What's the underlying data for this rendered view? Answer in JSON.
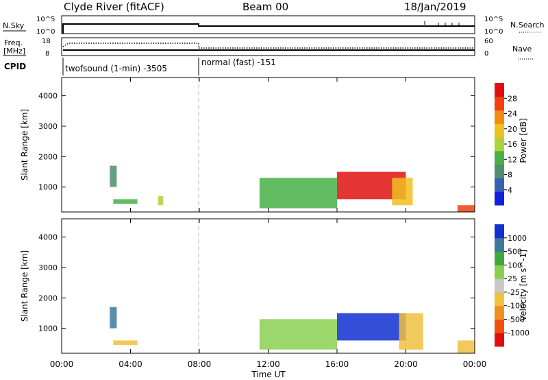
{
  "header": {
    "station": "Clyde River (fitACF)",
    "beam": "Beam 00",
    "date": "18/Jan/2019"
  },
  "nsky_panel": {
    "left_label": "N.Sky",
    "right_label": "N.Search",
    "left_ticks": [
      "10^5",
      "10^0"
    ],
    "right_ticks": [
      "10^5",
      "10^0"
    ]
  },
  "freq_panel": {
    "left_label_1": "Freq.",
    "left_label_2": "[MHz]",
    "right_label": "Nave",
    "left_ticks": [
      "18",
      "8"
    ],
    "right_ticks": [
      "60",
      "0"
    ]
  },
  "cpid_panel": {
    "label": "CPID",
    "mode1": "twofsound (1-min) -3505",
    "mode2": "normal (fast) -151"
  },
  "colors": {
    "power_scale": [
      "#1020e0",
      "#3a5fb8",
      "#4f8f6f",
      "#47b047",
      "#b0d040",
      "#f0c020",
      "#f08c10",
      "#f04010",
      "#e01010"
    ],
    "velocity_scale": [
      "#e01010",
      "#f05010",
      "#f09020",
      "#f0c040",
      "#c8c8c8",
      "#8ad050",
      "#40a840",
      "#3a7a9a",
      "#1030d0"
    ]
  },
  "chart_data": [
    {
      "type": "heatmap",
      "title": "",
      "ylabel": "Slant Range [km]",
      "xlabel": "",
      "xlim": [
        "00:00",
        "24:00"
      ],
      "ylim": [
        180,
        4600
      ],
      "yticks": [
        "1000",
        "2000",
        "3000",
        "4000"
      ],
      "xticks": [
        "00:00",
        "04:00",
        "08:00",
        "12:00",
        "16:00",
        "20:00",
        "00:00"
      ],
      "colorbar": {
        "label": "Power [dB]",
        "ticks": [
          "4",
          "8",
          "12",
          "16",
          "20",
          "24",
          "28"
        ],
        "range": [
          0,
          30
        ]
      },
      "regions": [
        {
          "t0": 2.8,
          "t1": 3.2,
          "r0": 1000,
          "r1": 1700,
          "z": 9
        },
        {
          "t0": 3.0,
          "t1": 4.4,
          "r0": 450,
          "r1": 600,
          "z": 12
        },
        {
          "t0": 5.6,
          "t1": 5.9,
          "r0": 400,
          "r1": 700,
          "z": 14
        },
        {
          "t0": 11.5,
          "t1": 16.0,
          "r0": 300,
          "r1": 1300,
          "z": 13
        },
        {
          "t0": 16.0,
          "t1": 20.0,
          "r0": 600,
          "r1": 1500,
          "z": 27
        },
        {
          "t0": 19.2,
          "t1": 20.4,
          "r0": 400,
          "r1": 1300,
          "z": 18
        },
        {
          "t0": 23.0,
          "t1": 24.0,
          "r0": 180,
          "r1": 400,
          "z": 26
        }
      ]
    },
    {
      "type": "heatmap",
      "title": "",
      "ylabel": "Slant Range [km]",
      "xlabel": "Time UT",
      "xlim": [
        "00:00",
        "24:00"
      ],
      "ylim": [
        180,
        4600
      ],
      "yticks": [
        "1000",
        "2000",
        "3000",
        "4000"
      ],
      "xticks": [
        "00:00",
        "04:00",
        "08:00",
        "12:00",
        "16:00",
        "20:00",
        "00:00"
      ],
      "colorbar": {
        "label": "Velocity [m s^-1]",
        "ticks": [
          "-1000",
          "-500",
          "-100",
          "-25",
          "25",
          "100",
          "500",
          "1000"
        ],
        "range": [
          -1000,
          1000
        ]
      },
      "regions": [
        {
          "t0": 2.8,
          "t1": 3.2,
          "r0": 1000,
          "r1": 1700,
          "z": 700
        },
        {
          "t0": 3.0,
          "t1": 4.4,
          "r0": 450,
          "r1": 600,
          "z": -200
        },
        {
          "t0": 11.5,
          "t1": 16.0,
          "r0": 300,
          "r1": 1300,
          "z": 150
        },
        {
          "t0": 16.0,
          "t1": 20.0,
          "r0": 600,
          "r1": 1500,
          "z": 900
        },
        {
          "t0": 19.6,
          "t1": 21.0,
          "r0": 300,
          "r1": 1500,
          "z": -300
        },
        {
          "t0": 23.0,
          "t1": 24.0,
          "r0": 180,
          "r1": 600,
          "z": -200
        }
      ]
    }
  ]
}
